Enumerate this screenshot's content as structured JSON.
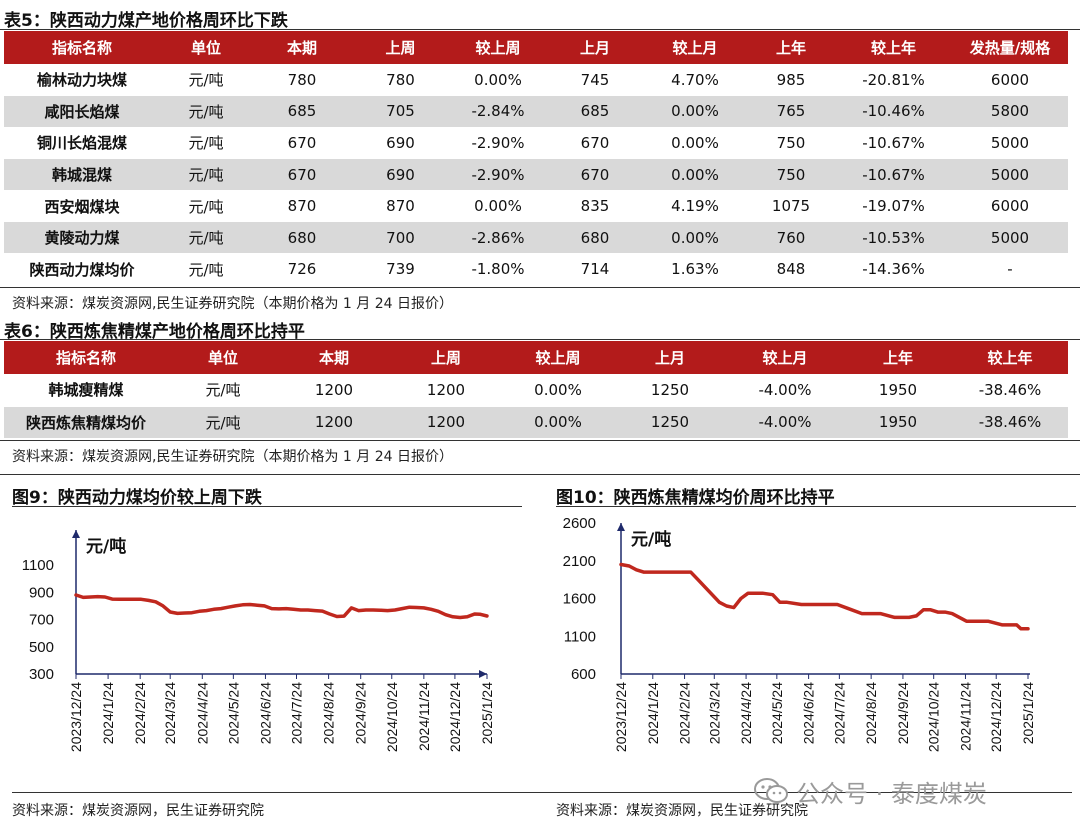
{
  "table5": {
    "title": "表5：陕西动力煤产地价格周环比下跌",
    "headers": [
      "指标名称",
      "单位",
      "本期",
      "上周",
      "较上周",
      "上月",
      "较上月",
      "上年",
      "较上年",
      "发热量/规格"
    ],
    "rows": [
      [
        "榆林动力块煤",
        "元/吨",
        "780",
        "780",
        "0.00%",
        "745",
        "4.70%",
        "985",
        "-20.81%",
        "6000"
      ],
      [
        "咸阳长焰煤",
        "元/吨",
        "685",
        "705",
        "-2.84%",
        "685",
        "0.00%",
        "765",
        "-10.46%",
        "5800"
      ],
      [
        "铜川长焰混煤",
        "元/吨",
        "670",
        "690",
        "-2.90%",
        "670",
        "0.00%",
        "750",
        "-10.67%",
        "5000"
      ],
      [
        "韩城混煤",
        "元/吨",
        "670",
        "690",
        "-2.90%",
        "670",
        "0.00%",
        "750",
        "-10.67%",
        "5000"
      ],
      [
        "西安烟煤块",
        "元/吨",
        "870",
        "870",
        "0.00%",
        "835",
        "4.19%",
        "1075",
        "-19.07%",
        "6000"
      ],
      [
        "黄陵动力煤",
        "元/吨",
        "680",
        "700",
        "-2.86%",
        "680",
        "0.00%",
        "760",
        "-10.53%",
        "5000"
      ],
      [
        "陕西动力煤均价",
        "元/吨",
        "726",
        "739",
        "-1.80%",
        "714",
        "1.63%",
        "848",
        "-14.36%",
        "-"
      ]
    ],
    "source": "资料来源：煤炭资源网,民生证券研究院（本期价格为 1 月 24 日报价）"
  },
  "table6": {
    "title": "表6：陕西炼焦精煤产地价格周环比持平",
    "headers": [
      "指标名称",
      "单位",
      "本期",
      "上周",
      "较上周",
      "上月",
      "较上月",
      "上年",
      "较上年"
    ],
    "rows": [
      [
        "韩城瘦精煤",
        "元/吨",
        "1200",
        "1200",
        "0.00%",
        "1250",
        "-4.00%",
        "1950",
        "-38.46%"
      ],
      [
        "陕西炼焦精煤均价",
        "元/吨",
        "1200",
        "1200",
        "0.00%",
        "1250",
        "-4.00%",
        "1950",
        "-38.46%"
      ]
    ],
    "source": "资料来源：煤炭资源网,民生证券研究院（本期价格为 1 月 24 日报价）"
  },
  "figure9": {
    "title": "图9：陕西动力煤均价较上周下跌",
    "source": "资料来源：煤炭资源网，民生证券研究院"
  },
  "figure10": {
    "title": "图10：陕西炼焦精煤均价周环比持平",
    "source": "资料来源：煤炭资源网，民生证券研究院"
  },
  "watermark": "公众号 · 泰度煤炭",
  "colors": {
    "header_red": "#b31b1b",
    "line_red": "#c0281e",
    "axis_navy": "#1f2a6b",
    "alt_row": "#d9d9d9"
  },
  "chart_data": [
    {
      "type": "line",
      "unit_label": "元/吨",
      "ylim": [
        300,
        1100
      ],
      "yticks": [
        300,
        500,
        700,
        900,
        1100
      ],
      "xlim": [
        "2023/12/24",
        "2025/1/24"
      ],
      "x_tick_labels": [
        "2023/12/24",
        "2024/1/24",
        "2024/2/24",
        "2024/3/24",
        "2024/4/24",
        "2024/5/24",
        "2024/6/24",
        "2024/7/24",
        "2024/8/24",
        "2024/9/24",
        "2024/10/24",
        "2024/11/24",
        "2024/12/24",
        "2025/1/24"
      ],
      "series": [
        {
          "x": [
            "2023/12/24",
            "2023/12/31",
            "2024/1/7",
            "2024/1/14",
            "2024/1/21",
            "2024/1/28",
            "2024/2/4",
            "2024/2/11",
            "2024/2/18",
            "2024/2/25",
            "2024/3/3",
            "2024/3/10",
            "2024/3/17",
            "2024/3/24",
            "2024/3/31",
            "2024/4/7",
            "2024/4/14",
            "2024/4/21",
            "2024/4/28",
            "2024/5/5",
            "2024/5/12",
            "2024/5/19",
            "2024/5/26",
            "2024/6/2",
            "2024/6/9",
            "2024/6/16",
            "2024/6/23",
            "2024/6/30",
            "2024/7/7",
            "2024/7/14",
            "2024/7/21",
            "2024/7/28",
            "2024/8/4",
            "2024/8/11",
            "2024/8/18",
            "2024/8/25",
            "2024/9/1",
            "2024/9/8",
            "2024/9/15",
            "2024/9/22",
            "2024/9/29",
            "2024/10/6",
            "2024/10/13",
            "2024/10/20",
            "2024/10/27",
            "2024/11/3",
            "2024/11/10",
            "2024/11/17",
            "2024/11/24",
            "2024/12/1",
            "2024/12/8",
            "2024/12/15",
            "2024/12/22",
            "2024/12/29",
            "2025/1/5",
            "2025/1/12",
            "2025/1/17",
            "2025/1/24"
          ],
          "y": [
            880,
            862,
            865,
            868,
            865,
            850,
            848,
            848,
            848,
            848,
            840,
            830,
            800,
            755,
            745,
            748,
            750,
            760,
            765,
            775,
            780,
            790,
            800,
            808,
            810,
            805,
            800,
            780,
            778,
            780,
            775,
            770,
            770,
            765,
            762,
            740,
            722,
            725,
            785,
            765,
            770,
            770,
            768,
            765,
            770,
            780,
            790,
            788,
            785,
            775,
            760,
            735,
            720,
            715,
            720,
            740,
            739,
            726
          ]
        }
      ]
    },
    {
      "type": "line",
      "unit_label": "元/吨",
      "ylim": [
        600,
        2600
      ],
      "yticks": [
        600,
        1100,
        1600,
        2100,
        2600
      ],
      "xlim": [
        "2023/12/24",
        "2025/1/24"
      ],
      "x_tick_labels": [
        "2023/12/24",
        "2024/1/24",
        "2024/2/24",
        "2024/3/24",
        "2024/4/24",
        "2024/5/24",
        "2024/6/24",
        "2024/7/24",
        "2024/8/24",
        "2024/9/24",
        "2024/10/24",
        "2024/11/24",
        "2024/12/24",
        "2025/1/24"
      ],
      "series": [
        {
          "x": [
            "2023/12/24",
            "2024/1/1",
            "2024/1/8",
            "2024/1/15",
            "2024/1/22",
            "2024/2/1",
            "2024/2/15",
            "2024/2/26",
            "2024/3/1",
            "2024/3/8",
            "2024/3/15",
            "2024/3/22",
            "2024/3/29",
            "2024/4/5",
            "2024/4/12",
            "2024/4/19",
            "2024/4/26",
            "2024/5/3",
            "2024/5/10",
            "2024/5/20",
            "2024/5/27",
            "2024/6/3",
            "2024/6/17",
            "2024/7/1",
            "2024/7/8",
            "2024/7/15",
            "2024/7/22",
            "2024/8/1",
            "2024/8/15",
            "2024/8/26",
            "2024/9/2",
            "2024/9/16",
            "2024/9/23",
            "2024/9/30",
            "2024/10/7",
            "2024/10/14",
            "2024/10/21",
            "2024/10/28",
            "2024/11/4",
            "2024/11/11",
            "2024/11/25",
            "2024/12/2",
            "2024/12/16",
            "2024/12/30",
            "2025/1/6",
            "2025/1/13",
            "2025/1/17",
            "2025/1/24"
          ],
          "y": [
            2050,
            2030,
            1980,
            1950,
            1950,
            1950,
            1950,
            1950,
            1950,
            1850,
            1750,
            1650,
            1550,
            1500,
            1480,
            1600,
            1670,
            1670,
            1670,
            1650,
            1550,
            1550,
            1520,
            1520,
            1520,
            1520,
            1520,
            1470,
            1400,
            1400,
            1400,
            1350,
            1350,
            1350,
            1370,
            1450,
            1450,
            1420,
            1420,
            1400,
            1300,
            1300,
            1300,
            1250,
            1250,
            1250,
            1200,
            1200
          ]
        }
      ]
    }
  ]
}
